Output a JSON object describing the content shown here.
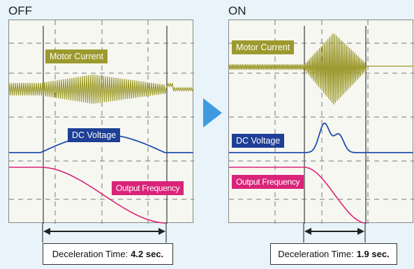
{
  "off": {
    "title": "OFF",
    "motor_current_label": "Motor Current",
    "dc_voltage_label": "DC Voltage",
    "output_frequency_label": "Output Frequency",
    "decel_label": "Deceleration Time:",
    "decel_value": "4.2 sec."
  },
  "on": {
    "title": "ON",
    "motor_current_label": "Motor Current",
    "dc_voltage_label": "DC Voltage",
    "output_frequency_label": "Output Frequency",
    "decel_label": "Deceleration Time:",
    "decel_value": "1.9 sec."
  },
  "colors": {
    "background": "#e8f3fa",
    "motor_current": "#9c9a2e",
    "dc_voltage": "#1f4fb0",
    "output_frequency": "#d9247a",
    "arrow": "#3f9be0"
  }
}
